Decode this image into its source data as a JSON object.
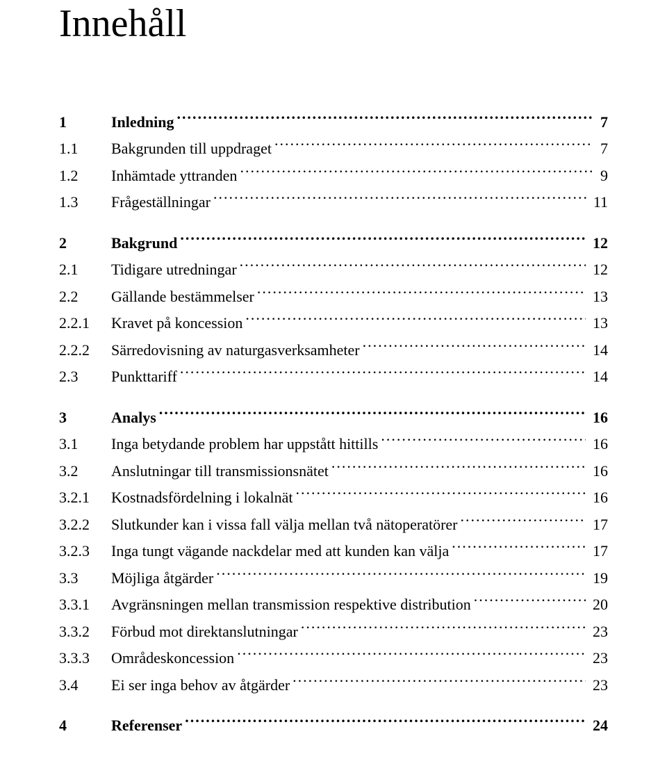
{
  "title": "Innehåll",
  "entries": [
    {
      "num": "1",
      "label": "Inledning",
      "page": "7",
      "bold": true,
      "gap_before": false
    },
    {
      "num": "1.1",
      "label": "Bakgrunden till uppdraget",
      "page": "7",
      "bold": false,
      "gap_before": false
    },
    {
      "num": "1.2",
      "label": "Inhämtade yttranden",
      "page": "9",
      "bold": false,
      "gap_before": false
    },
    {
      "num": "1.3",
      "label": "Frågeställningar",
      "page": "11",
      "bold": false,
      "gap_before": false
    },
    {
      "num": "2",
      "label": "Bakgrund",
      "page": "12",
      "bold": true,
      "gap_before": true
    },
    {
      "num": "2.1",
      "label": "Tidigare utredningar",
      "page": "12",
      "bold": false,
      "gap_before": false
    },
    {
      "num": "2.2",
      "label": "Gällande bestämmelser",
      "page": "13",
      "bold": false,
      "gap_before": false
    },
    {
      "num": "2.2.1",
      "label": "Kravet på koncession",
      "page": "13",
      "bold": false,
      "gap_before": false
    },
    {
      "num": "2.2.2",
      "label": "Särredovisning av naturgasverksamheter",
      "page": "14",
      "bold": false,
      "gap_before": false
    },
    {
      "num": "2.3",
      "label": "Punkttariff",
      "page": "14",
      "bold": false,
      "gap_before": false
    },
    {
      "num": "3",
      "label": "Analys",
      "page": "16",
      "bold": true,
      "gap_before": true
    },
    {
      "num": "3.1",
      "label": "Inga betydande problem har uppstått hittills",
      "page": "16",
      "bold": false,
      "gap_before": false
    },
    {
      "num": "3.2",
      "label": "Anslutningar till transmissionsnätet",
      "page": "16",
      "bold": false,
      "gap_before": false
    },
    {
      "num": "3.2.1",
      "label": "Kostnadsfördelning i lokalnät",
      "page": "16",
      "bold": false,
      "gap_before": false
    },
    {
      "num": "3.2.2",
      "label": "Slutkunder kan i vissa fall välja mellan två nätoperatörer",
      "page": "17",
      "bold": false,
      "gap_before": false
    },
    {
      "num": "3.2.3",
      "label": "Inga tungt vägande nackdelar med att kunden kan välja",
      "page": "17",
      "bold": false,
      "gap_before": false
    },
    {
      "num": "3.3",
      "label": "Möjliga åtgärder",
      "page": "19",
      "bold": false,
      "gap_before": false
    },
    {
      "num": "3.3.1",
      "label": "Avgränsningen mellan transmission respektive distribution",
      "page": "20",
      "bold": false,
      "gap_before": false
    },
    {
      "num": "3.3.2",
      "label": "Förbud mot direktanslutningar",
      "page": "23",
      "bold": false,
      "gap_before": false
    },
    {
      "num": "3.3.3",
      "label": "Områdeskoncession",
      "page": "23",
      "bold": false,
      "gap_before": false
    },
    {
      "num": "3.4",
      "label": "Ei ser inga behov av åtgärder",
      "page": "23",
      "bold": false,
      "gap_before": false
    },
    {
      "num": "4",
      "label": "Referenser",
      "page": "24",
      "bold": true,
      "gap_before": true
    }
  ]
}
